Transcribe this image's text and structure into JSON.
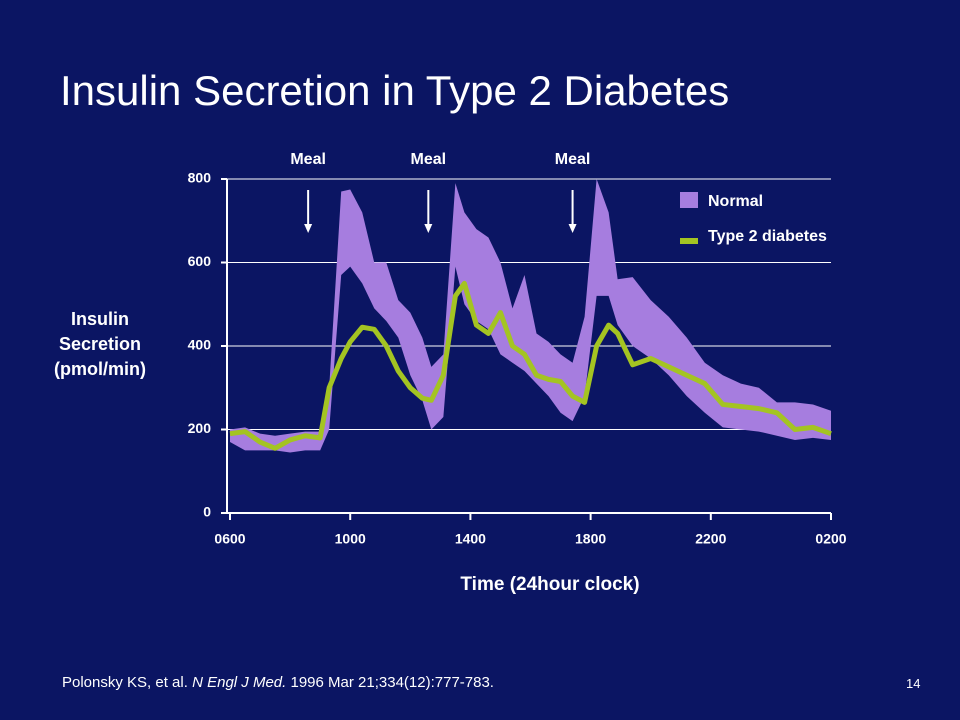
{
  "slide": {
    "title": "Insulin Secretion in Type 2 Diabetes",
    "source": [
      "Polonsky KS, et al.",
      "N Engl J Med.",
      "1996 Mar 21;334(12):777-783."
    ],
    "page": "14"
  },
  "chart_data": {
    "type": "band-line",
    "x_label": "Time (24hour clock)",
    "y_label": [
      "Insulin",
      "Secretion",
      "(pmol/min)"
    ],
    "x": [
      6,
      6.5,
      7,
      7.5,
      8,
      8.5,
      9,
      9.3,
      9.7,
      10,
      10.4,
      10.8,
      11.2,
      11.6,
      12,
      12.4,
      12.7,
      13.1,
      13.5,
      13.8,
      14.2,
      14.6,
      15,
      15.4,
      15.8,
      16.2,
      16.6,
      17,
      17.4,
      17.8,
      18.2,
      18.6,
      18.9,
      19.4,
      20,
      20.6,
      21.2,
      21.8,
      22.4,
      23,
      23.6,
      24.2,
      24.8,
      25.4,
      26
    ],
    "series": [
      {
        "name": "Normal",
        "color": "#a67ddf",
        "upper": [
          200,
          205,
          190,
          185,
          190,
          195,
          195,
          300,
          770,
          775,
          720,
          600,
          600,
          510,
          480,
          420,
          350,
          380,
          790,
          720,
          680,
          660,
          600,
          490,
          570,
          430,
          410,
          380,
          360,
          470,
          800,
          720,
          560,
          565,
          510,
          470,
          420,
          360,
          330,
          310,
          300,
          265,
          265,
          260,
          245
        ],
        "lower": [
          170,
          150,
          150,
          150,
          145,
          150,
          150,
          200,
          570,
          590,
          550,
          490,
          460,
          420,
          330,
          270,
          200,
          230,
          590,
          500,
          460,
          440,
          380,
          360,
          340,
          310,
          280,
          240,
          220,
          280,
          520,
          520,
          450,
          400,
          370,
          330,
          280,
          240,
          205,
          200,
          195,
          185,
          175,
          180,
          175
        ]
      },
      {
        "name": "Type 2 diabetes",
        "color": "#a4c422",
        "values": [
          190,
          195,
          170,
          155,
          175,
          185,
          180,
          300,
          370,
          410,
          445,
          440,
          400,
          340,
          300,
          275,
          270,
          330,
          520,
          550,
          450,
          430,
          480,
          400,
          380,
          330,
          320,
          315,
          280,
          265,
          400,
          450,
          430,
          355,
          370,
          350,
          330,
          310,
          260,
          255,
          250,
          240,
          200,
          205,
          190
        ]
      }
    ],
    "annotations": [
      {
        "text": "Meal",
        "x": 8.6
      },
      {
        "text": "Meal",
        "x": 12.6
      },
      {
        "text": "Meal",
        "x": 17.4
      }
    ],
    "xlim": [
      5.9,
      26
    ],
    "xticks": [
      {
        "value": 6,
        "label": "0600"
      },
      {
        "value": 10,
        "label": "1000"
      },
      {
        "value": 14,
        "label": "1400"
      },
      {
        "value": 18,
        "label": "1800"
      },
      {
        "value": 22,
        "label": "2200"
      },
      {
        "value": 26,
        "label": "0200"
      }
    ],
    "ylim": [
      0,
      800
    ],
    "yticks": [
      0,
      200,
      400,
      600,
      800
    ],
    "grid": true,
    "legend": "upper right"
  }
}
